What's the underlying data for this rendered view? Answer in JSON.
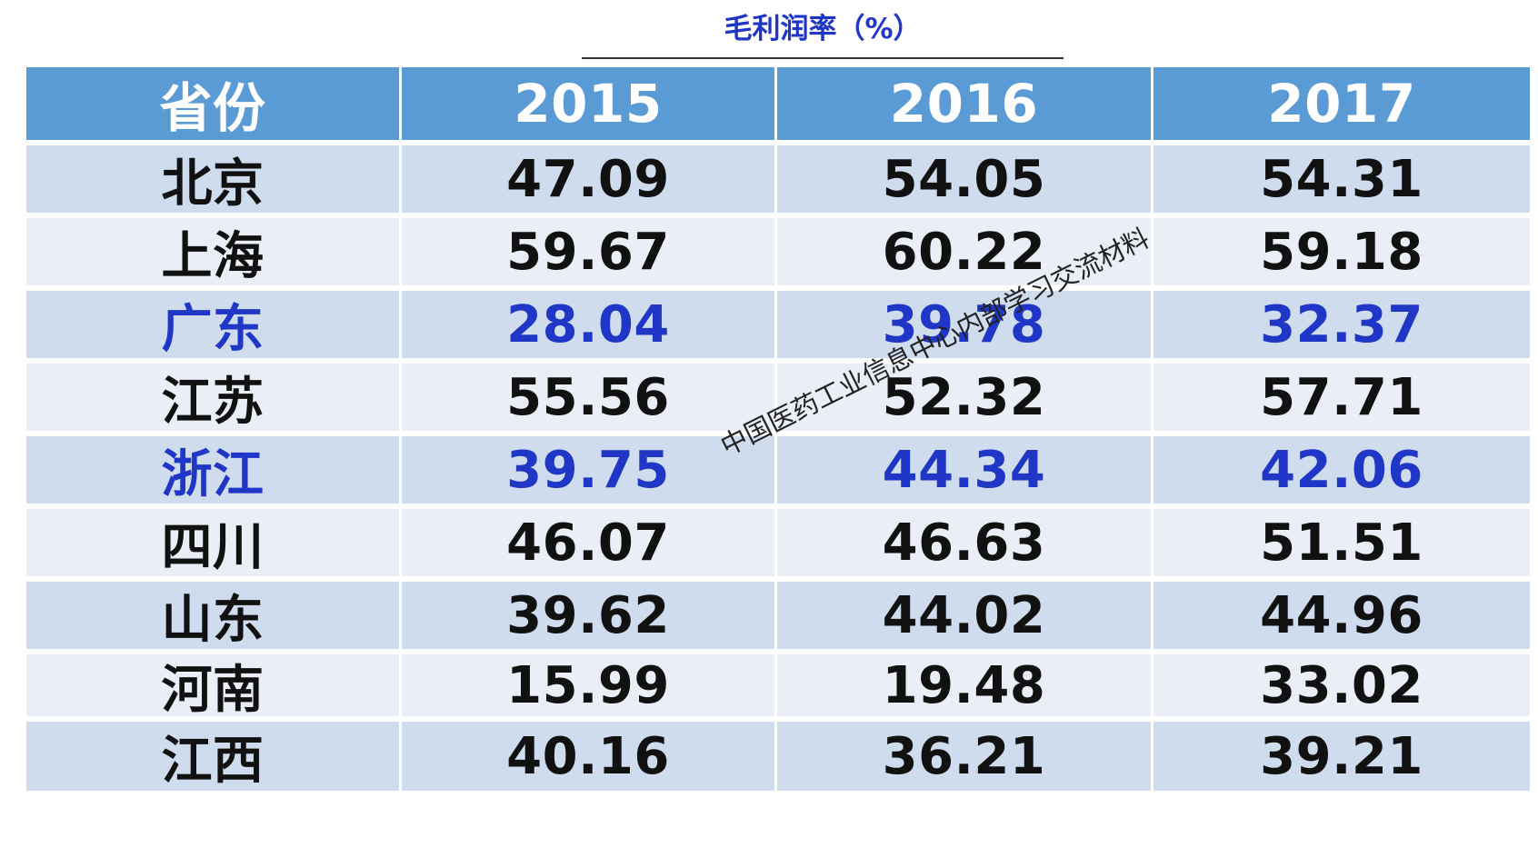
{
  "title": "毛利润率（%）",
  "watermark": "中国医药工业信息中心内部学习交流材料",
  "chart_data": {
    "type": "table",
    "title": "毛利润率（%）",
    "columns": [
      "省份",
      "2015",
      "2016",
      "2017"
    ],
    "rows": [
      {
        "province": "北京",
        "values": [
          "47.09",
          "54.05",
          "54.31"
        ],
        "highlight": false
      },
      {
        "province": "上海",
        "values": [
          "59.67",
          "60.22",
          "59.18"
        ],
        "highlight": false
      },
      {
        "province": "广东",
        "values": [
          "28.04",
          "39.78",
          "32.37"
        ],
        "highlight": true
      },
      {
        "province": "江苏",
        "values": [
          "55.56",
          "52.32",
          "57.71"
        ],
        "highlight": false
      },
      {
        "province": "浙江",
        "values": [
          "39.75",
          "44.34",
          "42.06"
        ],
        "highlight": true
      },
      {
        "province": "四川",
        "values": [
          "46.07",
          "46.63",
          "51.51"
        ],
        "highlight": false
      },
      {
        "province": "山东",
        "values": [
          "39.62",
          "44.02",
          "44.96"
        ],
        "highlight": false
      },
      {
        "province": "河南",
        "values": [
          "15.99",
          "19.48",
          "33.02"
        ],
        "highlight": false
      },
      {
        "province": "江西",
        "values": [
          "40.16",
          "36.21",
          "39.21"
        ],
        "highlight": false
      }
    ]
  },
  "colors": {
    "header_bg": "#5b9bd5",
    "row_dark": "#cfdcee",
    "row_light": "#e9eef7",
    "highlight_text": "#1f36c7",
    "normal_text": "#111111"
  }
}
